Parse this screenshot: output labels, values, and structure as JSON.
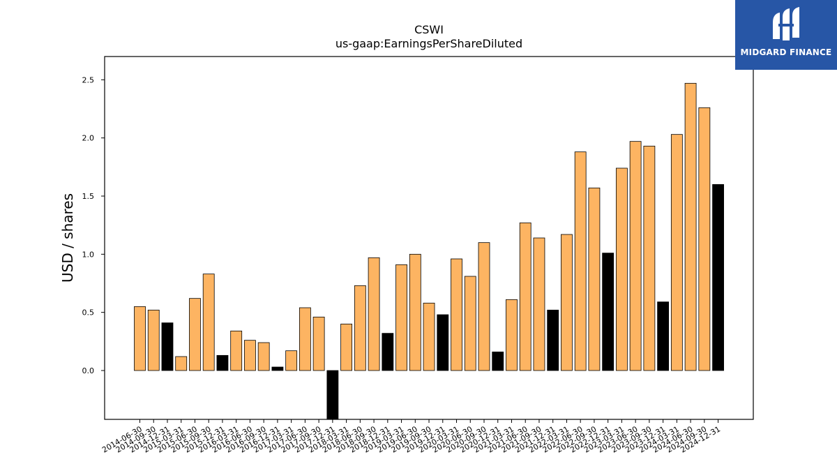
{
  "brand": {
    "name": "MIDGARD FINANCE",
    "background": "#2756a6",
    "text_color": "#ffffff"
  },
  "chart_data": {
    "type": "bar",
    "title": "CSWI",
    "subtitle": "us-gaap:EarningsPerShareDiluted",
    "xlabel": "",
    "ylabel": "USD / shares",
    "ylim": [
      -0.42,
      2.7
    ],
    "yticks": [
      0.0,
      0.5,
      1.0,
      1.5,
      2.0,
      2.5
    ],
    "ytick_labels": [
      "0.0",
      "0.5",
      "1.0",
      "1.5",
      "2.0",
      "2.5"
    ],
    "grid": false,
    "colors": {
      "quarterly": "#fdb462",
      "annual": "#000000",
      "edge": "#000000"
    },
    "categories": [
      "2014-06-30",
      "2014-09-30",
      "2014-12-31",
      "2015-03-31",
      "2015-06-30",
      "2015-09-30",
      "2015-12-31",
      "2016-03-31",
      "2016-06-30",
      "2016-09-30",
      "2016-12-31",
      "2017-03-31",
      "2017-06-30",
      "2017-09-30",
      "2017-12-31",
      "2018-03-31",
      "2018-06-30",
      "2018-09-30",
      "2018-12-31",
      "2019-03-31",
      "2019-06-30",
      "2019-09-30",
      "2019-12-31",
      "2020-03-31",
      "2020-06-30",
      "2020-09-30",
      "2020-12-31",
      "2021-03-31",
      "2021-06-30",
      "2021-09-30",
      "2021-12-31",
      "2022-03-31",
      "2022-06-30",
      "2022-09-30",
      "2022-12-31",
      "2023-03-31",
      "2023-06-30",
      "2023-09-30",
      "2023-12-31",
      "2024-03-31",
      "2024-06-30",
      "2024-09-30",
      "2024-12-31"
    ],
    "values": [
      0.55,
      0.52,
      0.41,
      0.12,
      0.62,
      0.83,
      0.13,
      0.34,
      0.26,
      0.24,
      0.03,
      0.17,
      0.54,
      0.46,
      -0.45,
      0.4,
      0.73,
      0.97,
      0.32,
      0.91,
      1.0,
      0.58,
      0.48,
      0.96,
      0.81,
      1.1,
      0.16,
      0.61,
      1.27,
      1.14,
      0.52,
      1.17,
      1.88,
      1.57,
      1.01,
      1.74,
      1.97,
      1.93,
      0.59,
      2.03,
      2.47,
      2.26,
      1.6
    ],
    "highlight": [
      false,
      false,
      true,
      false,
      false,
      false,
      true,
      false,
      false,
      false,
      true,
      false,
      false,
      false,
      true,
      false,
      false,
      false,
      true,
      false,
      false,
      false,
      true,
      false,
      false,
      false,
      true,
      false,
      false,
      false,
      true,
      false,
      false,
      false,
      true,
      false,
      false,
      false,
      true,
      false,
      false,
      false,
      true
    ]
  }
}
